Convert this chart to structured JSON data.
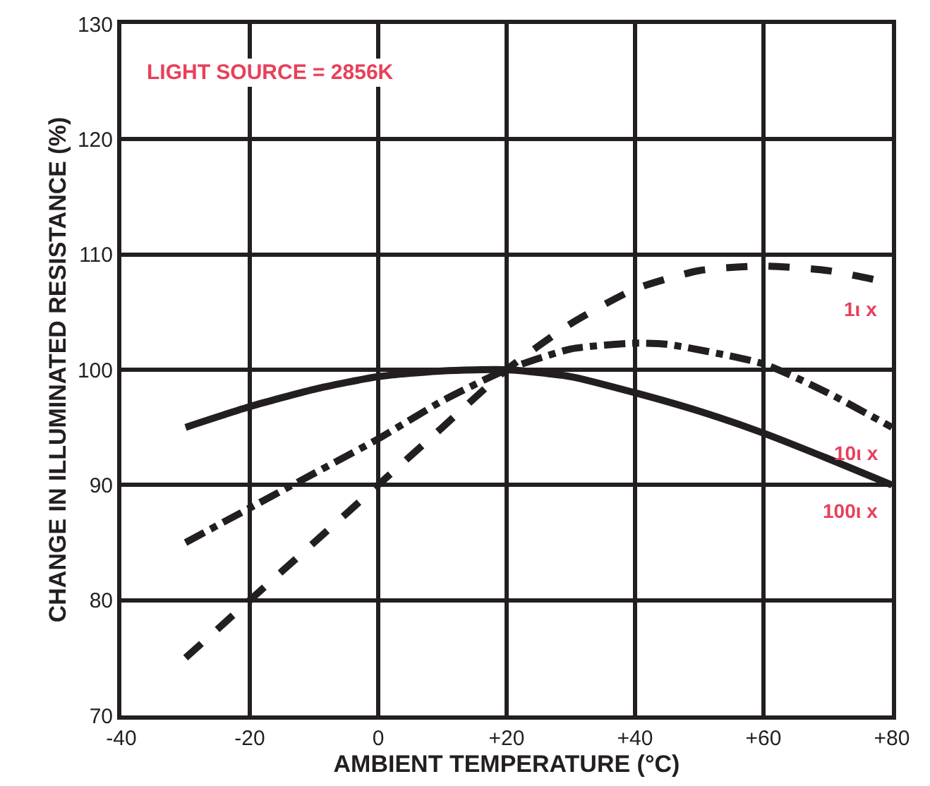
{
  "chart_data": {
    "type": "line",
    "xlabel": "AMBIENT TEMPERATURE (°C)",
    "ylabel": "CHANGE IN ILLUMINATED RESISTANCE (%)",
    "annotations": [
      "LIGHT SOURCE = 2856K"
    ],
    "series": [
      {
        "name": "1ι x",
        "color": "#231f20",
        "line_style": "dashed",
        "x": [
          -30,
          -20,
          -10,
          0,
          10,
          20,
          30,
          40,
          50,
          60,
          70,
          80
        ],
        "values": [
          75,
          80,
          85,
          90,
          95,
          100,
          104,
          107,
          108.6,
          109,
          108.6,
          107.5
        ]
      },
      {
        "name": "10ι x",
        "color": "#231f20",
        "line_style": "dashdot",
        "x": [
          -30,
          -20,
          -10,
          0,
          10,
          20,
          30,
          40,
          45,
          60,
          70,
          80
        ],
        "values": [
          85,
          88,
          91,
          94,
          97.3,
          100,
          101.8,
          102.3,
          102.2,
          100.5,
          98,
          95
        ]
      },
      {
        "name": "100ι x",
        "color": "#231f20",
        "line_style": "solid",
        "x": [
          -30,
          -20,
          -10,
          0,
          10,
          20,
          30,
          40,
          50,
          60,
          70,
          80
        ],
        "values": [
          95,
          96.8,
          98.3,
          99.4,
          99.9,
          100,
          99.4,
          98,
          96.4,
          94.5,
          92.3,
          90
        ]
      }
    ],
    "xlim": [
      -40,
      80
    ],
    "xticks": [
      -40,
      -20,
      0,
      {
        "value": 20,
        "label": "+20"
      },
      {
        "value": 40,
        "label": "+40"
      },
      {
        "value": 60,
        "label": "+60"
      },
      {
        "value": 80,
        "label": "+80"
      }
    ],
    "ylim": [
      70,
      130
    ],
    "yticks": [
      70,
      80,
      90,
      100,
      110,
      120,
      130
    ],
    "grid": true,
    "legend": false
  }
}
